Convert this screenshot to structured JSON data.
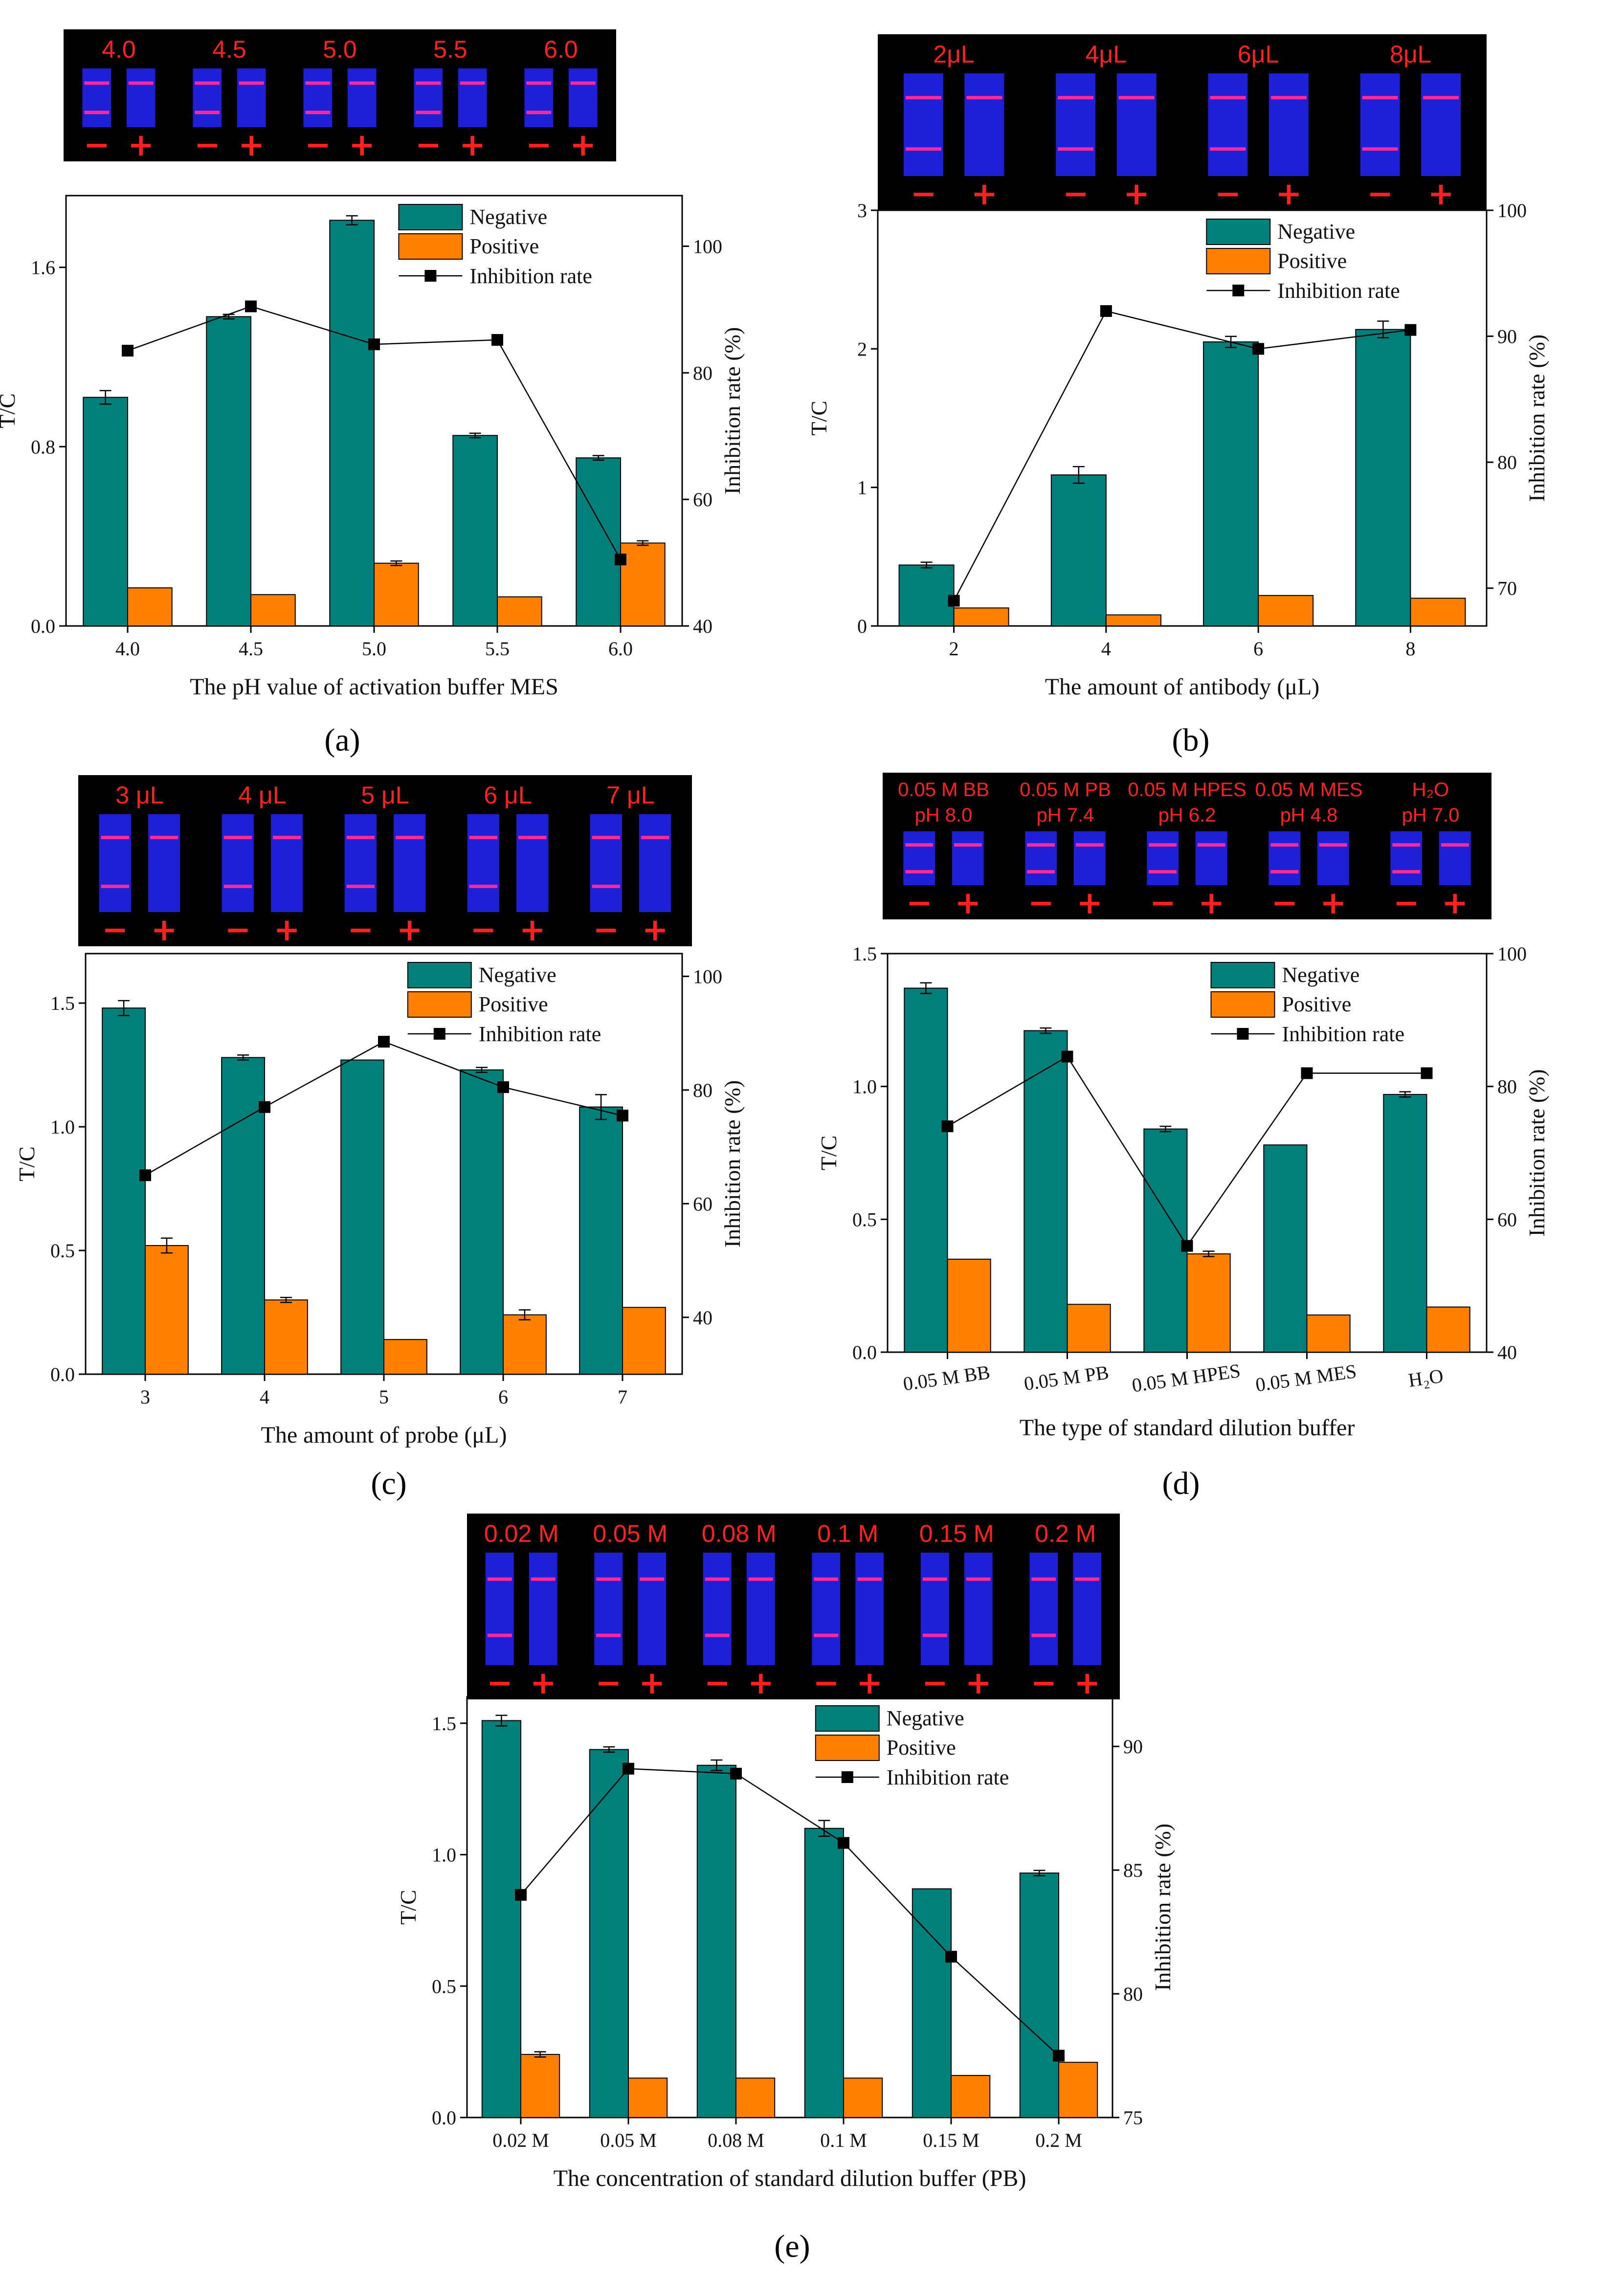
{
  "colors": {
    "negative": "#007f7b",
    "positive": "#ff7f00",
    "line": "#000000",
    "strip_bg": "#000000",
    "strip_blue": "#1f1fd8",
    "band": "#ff2a9a",
    "strip_label": "#ff2020"
  },
  "panels": [
    {
      "label": "(a)",
      "strip": {
        "titles": [
          "4.0",
          "4.5",
          "5.0",
          "5.5",
          "6.0"
        ],
        "signs": [
          "−",
          "+"
        ]
      },
      "chart_data": {
        "type": "bar",
        "categories": [
          "4.0",
          "4.5",
          "5.0",
          "5.5",
          "6.0"
        ],
        "series": [
          {
            "name": "Negative",
            "values": [
              1.02,
              1.38,
              1.81,
              0.85,
              0.75
            ],
            "errors": [
              0.03,
              0.01,
              0.02,
              0.01,
              0.01
            ]
          },
          {
            "name": "Positive",
            "values": [
              0.17,
              0.14,
              0.28,
              0.13,
              0.37
            ],
            "errors": [
              0.0,
              0.0,
              0.01,
              0.0,
              0.01
            ]
          }
        ],
        "line": {
          "name": "Inhibition rate",
          "values": [
            83.5,
            90.5,
            84.5,
            85.2,
            50.5
          ]
        },
        "xlabel": "The pH value of activation buffer MES",
        "ylabel": "T/C",
        "ylabel2": "Inhibition rate (%)",
        "ylim": [
          0,
          1.92
        ],
        "y2lim": [
          40,
          108
        ],
        "yticks": [
          "0.0",
          "0.8",
          "1.6"
        ],
        "y2ticks": [
          "40",
          "60",
          "80",
          "100"
        ],
        "legend": "top-right"
      }
    },
    {
      "label": "(b)",
      "strip": {
        "titles": [
          "2μL",
          "4μL",
          "6μL",
          "8μL"
        ],
        "signs": [
          "−",
          "+"
        ]
      },
      "chart_data": {
        "type": "bar",
        "categories": [
          "2",
          "4",
          "6",
          "8"
        ],
        "series": [
          {
            "name": "Negative",
            "values": [
              0.44,
              1.09,
              2.05,
              2.14
            ],
            "errors": [
              0.02,
              0.06,
              0.04,
              0.06
            ]
          },
          {
            "name": "Positive",
            "values": [
              0.13,
              0.08,
              0.22,
              0.2
            ],
            "errors": [
              0.0,
              0.0,
              0.0,
              0.0
            ]
          }
        ],
        "line": {
          "name": "Inhibition rate",
          "values": [
            69.0,
            92.0,
            89.0,
            90.5
          ]
        },
        "xlabel": "The amount of antibody (μL)",
        "ylabel": "T/C",
        "ylabel2": "Inhibition rate (%)",
        "ylim": [
          0,
          3.0
        ],
        "y2lim": [
          67,
          100
        ],
        "yticks": [
          "0",
          "1",
          "2",
          "3"
        ],
        "y2ticks": [
          "70",
          "80",
          "90",
          "100"
        ],
        "legend": "top-right"
      }
    },
    {
      "label": "(c)",
      "strip": {
        "titles": [
          "3 μL",
          "4 μL",
          "5 μL",
          "6 μL",
          "7 μL"
        ],
        "signs": [
          "−",
          "+"
        ]
      },
      "chart_data": {
        "type": "bar",
        "categories": [
          "3",
          "4",
          "5",
          "6",
          "7"
        ],
        "series": [
          {
            "name": "Negative",
            "values": [
              1.48,
              1.28,
              1.27,
              1.23,
              1.08
            ],
            "errors": [
              0.03,
              0.01,
              0.0,
              0.01,
              0.05
            ]
          },
          {
            "name": "Positive",
            "values": [
              0.52,
              0.3,
              0.14,
              0.24,
              0.27
            ],
            "errors": [
              0.03,
              0.01,
              0.0,
              0.02,
              0.0
            ]
          }
        ],
        "line": {
          "name": "Inhibition rate",
          "values": [
            65.0,
            77.0,
            88.5,
            80.5,
            75.5
          ]
        },
        "xlabel": "The amount of probe (μL)",
        "ylabel": "T/C",
        "ylabel2": "Inhibition rate (%)",
        "ylim": [
          0,
          1.7
        ],
        "y2lim": [
          30,
          104
        ],
        "yticks": [
          "0.0",
          "0.5",
          "1.0",
          "1.5"
        ],
        "y2ticks": [
          "40",
          "60",
          "80",
          "100"
        ],
        "legend": "top-right"
      }
    },
    {
      "label": "(d)",
      "strip": {
        "titles": [
          "0.05 M BB",
          "0.05 M PB",
          "0.05 M HPES",
          "0.05 M MES",
          "H₂O"
        ],
        "subtitles": [
          "pH  8.0",
          "pH  7.4",
          "pH  6.2",
          "pH  4.8",
          "pH  7.0"
        ],
        "signs": [
          "−",
          "+"
        ]
      },
      "chart_data": {
        "type": "bar",
        "categories": [
          "0.05 M BB",
          "0.05 M PB",
          "0.05 M HPES",
          "0.05 M MES",
          "H₂O"
        ],
        "series": [
          {
            "name": "Negative",
            "values": [
              1.37,
              1.21,
              0.84,
              0.78,
              0.97
            ],
            "errors": [
              0.02,
              0.01,
              0.01,
              0.0,
              0.01
            ]
          },
          {
            "name": "Positive",
            "values": [
              0.35,
              0.18,
              0.37,
              0.14,
              0.17
            ],
            "errors": [
              0.0,
              0.0,
              0.01,
              0.0,
              0.0
            ]
          }
        ],
        "line": {
          "name": "Inhibition rate",
          "values": [
            74.0,
            84.5,
            56.0,
            82.0,
            82.0
          ]
        },
        "xlabel": "The type of standard dilution buffer",
        "ylabel": "T/C",
        "ylabel2": "Inhibition rate (%)",
        "ylim": [
          0,
          1.5
        ],
        "y2lim": [
          40,
          100
        ],
        "yticks": [
          "0.0",
          "0.5",
          "1.0",
          "1.5"
        ],
        "y2ticks": [
          "40",
          "60",
          "80",
          "100"
        ],
        "legend": "top-right"
      }
    },
    {
      "label": "(e)",
      "strip": {
        "titles": [
          "0.02 M",
          "0.05 M",
          "0.08 M",
          "0.1 M",
          "0.15 M",
          "0.2 M"
        ],
        "signs": [
          "−",
          "+"
        ]
      },
      "chart_data": {
        "type": "bar",
        "categories": [
          "0.02 M",
          "0.05 M",
          "0.08 M",
          "0.1 M",
          "0.15 M",
          "0.2 M"
        ],
        "series": [
          {
            "name": "Negative",
            "values": [
              1.51,
              1.4,
              1.34,
              1.1,
              0.87,
              0.93
            ],
            "errors": [
              0.02,
              0.01,
              0.02,
              0.03,
              0.0,
              0.01
            ]
          },
          {
            "name": "Positive",
            "values": [
              0.24,
              0.15,
              0.15,
              0.15,
              0.16,
              0.21
            ],
            "errors": [
              0.01,
              0.0,
              0.0,
              0.0,
              0.0,
              0.0
            ]
          }
        ],
        "line": {
          "name": "Inhibition rate",
          "values": [
            84.0,
            89.1,
            88.9,
            86.1,
            81.5,
            77.5
          ]
        },
        "xlabel": "The concentration of standard dilution buffer (PB)",
        "ylabel": "T/C",
        "ylabel2": "Inhibition rate (%)",
        "ylim": [
          0,
          1.6
        ],
        "y2lim": [
          75,
          92
        ],
        "yticks": [
          "0.0",
          "0.5",
          "1.0",
          "1.5"
        ],
        "y2ticks": [
          "75",
          "80",
          "85",
          "90"
        ],
        "legend": "top-right"
      }
    }
  ]
}
